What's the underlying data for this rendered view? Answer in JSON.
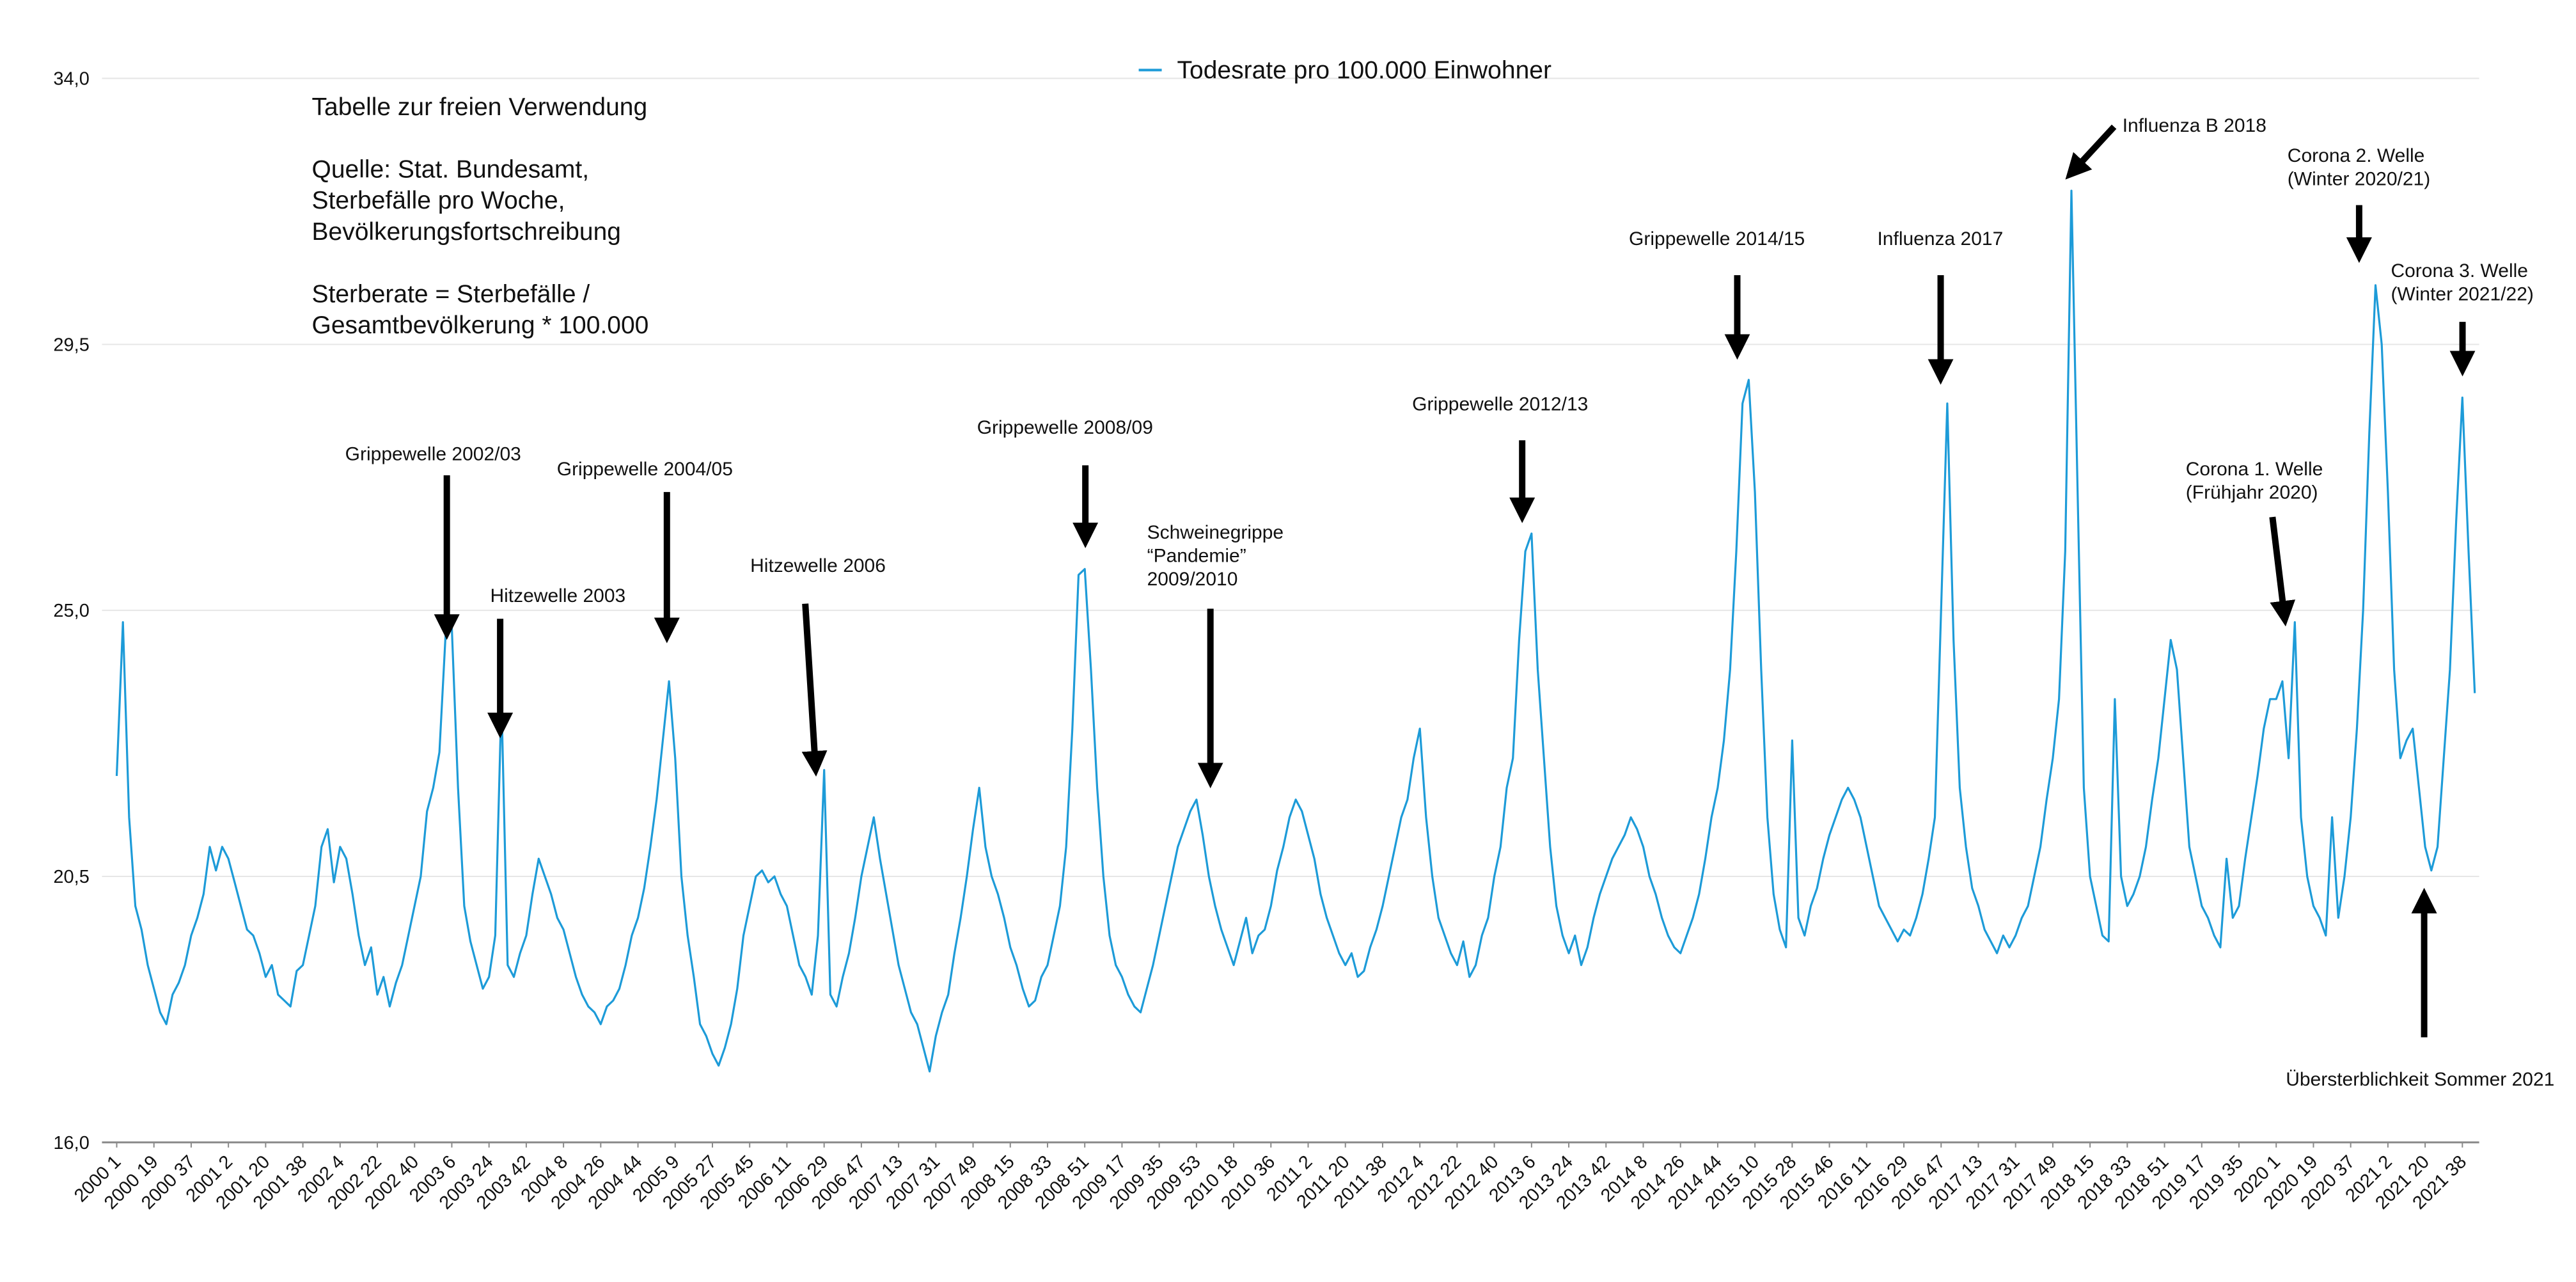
{
  "chart_data": {
    "type": "line",
    "legend": "top",
    "grid": true,
    "ylim": [
      16,
      34
    ],
    "yticks": [
      {
        "value": 16,
        "label": "16,0"
      },
      {
        "value": 20.5,
        "label": "20,5"
      },
      {
        "value": 25,
        "label": "25,0"
      },
      {
        "value": 29.5,
        "label": "29,5"
      },
      {
        "value": 34,
        "label": "34,0"
      }
    ],
    "notes": [
      [
        "Tabelle zur freien Verwendung"
      ],
      [
        "Quelle: Stat. Bundesamt,",
        "Sterbefälle pro Woche,",
        "Bevölkerungsfortschreibung"
      ],
      [
        "Sterberate = Sterbefälle /",
        "Gesamtbevölkerung * 100.000"
      ]
    ],
    "annotations": [
      {
        "lines": [
          "Grippewelle 2002/03"
        ]
      },
      {
        "lines": [
          "Hitzewelle 2003"
        ]
      },
      {
        "lines": [
          "Grippewelle 2004/05"
        ]
      },
      {
        "lines": [
          "Hitzewelle 2006"
        ]
      },
      {
        "lines": [
          "Grippewelle 2008/09"
        ]
      },
      {
        "lines": [
          "Schweinegrippe",
          "“Pandemie”",
          "2009/2010"
        ]
      },
      {
        "lines": [
          "Grippewelle 2012/13"
        ]
      },
      {
        "lines": [
          "Grippewelle 2014/15"
        ]
      },
      {
        "lines": [
          "Influenza 2017"
        ]
      },
      {
        "lines": [
          "Influenza B 2018"
        ]
      },
      {
        "lines": [
          "Corona 2. Welle",
          "(Winter 2020/21)"
        ]
      },
      {
        "lines": [
          "Corona 3. Welle",
          "(Winter 2021/22)"
        ]
      },
      {
        "lines": [
          "Corona 1. Welle",
          "(Frühjahr 2020)"
        ]
      },
      {
        "lines": [
          "Übersterblichkeit Sommer 2021"
        ]
      }
    ],
    "categories": [
      "2000 1",
      null,
      null,
      null,
      null,
      null,
      "2000 19",
      null,
      null,
      null,
      null,
      null,
      "2000 37",
      null,
      null,
      null,
      null,
      null,
      "2001 2",
      null,
      null,
      null,
      null,
      null,
      "2001 20",
      null,
      null,
      null,
      null,
      null,
      "2001 38",
      null,
      null,
      null,
      null,
      null,
      "2002 4",
      null,
      null,
      null,
      null,
      null,
      "2002 22",
      null,
      null,
      null,
      null,
      null,
      "2002 40",
      null,
      null,
      null,
      null,
      null,
      "2003 6",
      null,
      null,
      null,
      null,
      null,
      "2003 24",
      null,
      null,
      null,
      null,
      null,
      "2003 42",
      null,
      null,
      null,
      null,
      null,
      "2004 8",
      null,
      null,
      null,
      null,
      null,
      "2004 26",
      null,
      null,
      null,
      null,
      null,
      "2004 44",
      null,
      null,
      null,
      null,
      null,
      "2005 9",
      null,
      null,
      null,
      null,
      null,
      "2005 27",
      null,
      null,
      null,
      null,
      null,
      "2005 45",
      null,
      null,
      null,
      null,
      null,
      "2006 11",
      null,
      null,
      null,
      null,
      null,
      "2006 29",
      null,
      null,
      null,
      null,
      null,
      "2006 47",
      null,
      null,
      null,
      null,
      null,
      "2007 13",
      null,
      null,
      null,
      null,
      null,
      "2007 31",
      null,
      null,
      null,
      null,
      null,
      "2007 49",
      null,
      null,
      null,
      null,
      null,
      "2008 15",
      null,
      null,
      null,
      null,
      null,
      "2008 33",
      null,
      null,
      null,
      null,
      null,
      "2008 51",
      null,
      null,
      null,
      null,
      null,
      "2009 17",
      null,
      null,
      null,
      null,
      null,
      "2009 35",
      null,
      null,
      null,
      null,
      null,
      "2009 53",
      null,
      null,
      null,
      null,
      null,
      "2010 18",
      null,
      null,
      null,
      null,
      null,
      "2010 36",
      null,
      null,
      null,
      null,
      null,
      "2011 2",
      null,
      null,
      null,
      null,
      null,
      "2011 20",
      null,
      null,
      null,
      null,
      null,
      "2011 38",
      null,
      null,
      null,
      null,
      null,
      "2012 4",
      null,
      null,
      null,
      null,
      null,
      "2012 22",
      null,
      null,
      null,
      null,
      null,
      "2012 40",
      null,
      null,
      null,
      null,
      null,
      "2013 6",
      null,
      null,
      null,
      null,
      null,
      "2013 24",
      null,
      null,
      null,
      null,
      null,
      "2013 42",
      null,
      null,
      null,
      null,
      null,
      "2014 8",
      null,
      null,
      null,
      null,
      null,
      "2014 26",
      null,
      null,
      null,
      null,
      null,
      "2014 44",
      null,
      null,
      null,
      null,
      null,
      "2015 10",
      null,
      null,
      null,
      null,
      null,
      "2015 28",
      null,
      null,
      null,
      null,
      null,
      "2015 46",
      null,
      null,
      null,
      null,
      null,
      "2016 11",
      null,
      null,
      null,
      null,
      null,
      "2016 29",
      null,
      null,
      null,
      null,
      null,
      "2016 47",
      null,
      null,
      null,
      null,
      null,
      "2017 13",
      null,
      null,
      null,
      null,
      null,
      "2017 31",
      null,
      null,
      null,
      null,
      null,
      "2017 49",
      null,
      null,
      null,
      null,
      null,
      "2018 15",
      null,
      null,
      null,
      null,
      null,
      "2018 33",
      null,
      null,
      null,
      null,
      null,
      "2018 51",
      null,
      null,
      null,
      null,
      null,
      "2019 17",
      null,
      null,
      null,
      null,
      null,
      "2019 35",
      null,
      null,
      null,
      null,
      null,
      "2020 1",
      null,
      null,
      null,
      null,
      null,
      "2020 19",
      null,
      null,
      null,
      null,
      null,
      "2020 37",
      null,
      null,
      null,
      null,
      null,
      "2021 2",
      null,
      null,
      null,
      null,
      null,
      "2021 20",
      null,
      null,
      null,
      null,
      null,
      "2021 38",
      null,
      null
    ],
    "series": [
      {
        "name": "Todesrate pro 100.000 Einwohner",
        "color": "#1d9bd8",
        "values": [
          22.2,
          24.8,
          21.5,
          20.0,
          19.6,
          19.0,
          18.6,
          18.2,
          18.0,
          18.5,
          18.7,
          19.0,
          19.5,
          19.8,
          20.2,
          21.0,
          20.6,
          21.0,
          20.8,
          20.4,
          20.0,
          19.6,
          19.5,
          19.2,
          18.8,
          19.0,
          18.5,
          18.4,
          18.3,
          18.9,
          19.0,
          19.5,
          20.0,
          21.0,
          21.3,
          20.4,
          21.0,
          20.8,
          20.2,
          19.5,
          19.0,
          19.3,
          18.5,
          18.8,
          18.3,
          18.7,
          19.0,
          19.5,
          20.0,
          20.5,
          21.6,
          22.0,
          22.6,
          24.6,
          24.7,
          22.0,
          20.0,
          19.4,
          19.0,
          18.6,
          18.8,
          19.5,
          23.5,
          19.0,
          18.8,
          19.2,
          19.5,
          20.2,
          20.8,
          20.5,
          20.2,
          19.8,
          19.6,
          19.2,
          18.8,
          18.5,
          18.3,
          18.2,
          18.0,
          18.3,
          18.4,
          18.6,
          19.0,
          19.5,
          19.8,
          20.3,
          21.0,
          21.8,
          22.8,
          23.8,
          22.5,
          20.5,
          19.5,
          18.8,
          18.0,
          17.8,
          17.5,
          17.3,
          17.6,
          18.0,
          18.6,
          19.5,
          20.0,
          20.5,
          20.6,
          20.4,
          20.5,
          20.2,
          20.0,
          19.5,
          19.0,
          18.8,
          18.5,
          19.5,
          22.3,
          18.5,
          18.3,
          18.8,
          19.2,
          19.8,
          20.5,
          21.0,
          21.5,
          20.8,
          20.2,
          19.6,
          19.0,
          18.6,
          18.2,
          18.0,
          17.6,
          17.2,
          17.8,
          18.2,
          18.5,
          19.2,
          19.8,
          20.5,
          21.3,
          22.0,
          21.0,
          20.5,
          20.2,
          19.8,
          19.3,
          19.0,
          18.6,
          18.3,
          18.4,
          18.8,
          19.0,
          19.5,
          20.0,
          21.0,
          23.0,
          25.6,
          25.7,
          24.0,
          22.0,
          20.5,
          19.5,
          19.0,
          18.8,
          18.5,
          18.3,
          18.2,
          18.6,
          19.0,
          19.5,
          20.0,
          20.5,
          21.0,
          21.3,
          21.6,
          21.8,
          21.2,
          20.5,
          20.0,
          19.6,
          19.3,
          19.0,
          19.4,
          19.8,
          19.2,
          19.5,
          19.6,
          20.0,
          20.6,
          21.0,
          21.5,
          21.8,
          21.6,
          21.2,
          20.8,
          20.2,
          19.8,
          19.5,
          19.2,
          19.0,
          19.2,
          18.8,
          18.9,
          19.3,
          19.6,
          20.0,
          20.5,
          21.0,
          21.5,
          21.8,
          22.5,
          23.0,
          21.5,
          20.5,
          19.8,
          19.5,
          19.2,
          19.0,
          19.4,
          18.8,
          19.0,
          19.5,
          19.8,
          20.5,
          21.0,
          22.0,
          22.5,
          24.5,
          26.0,
          26.3,
          24.0,
          22.5,
          21.0,
          20.0,
          19.5,
          19.2,
          19.5,
          19.0,
          19.3,
          19.8,
          20.2,
          20.5,
          20.8,
          21.0,
          21.2,
          21.5,
          21.3,
          21.0,
          20.5,
          20.2,
          19.8,
          19.5,
          19.3,
          19.2,
          19.5,
          19.8,
          20.2,
          20.8,
          21.5,
          22.0,
          22.8,
          24.0,
          26.0,
          28.5,
          28.9,
          27.0,
          24.0,
          21.5,
          20.2,
          19.6,
          19.3,
          22.8,
          19.8,
          19.5,
          20.0,
          20.3,
          20.8,
          21.2,
          21.5,
          21.8,
          22.0,
          21.8,
          21.5,
          21.0,
          20.5,
          20.0,
          19.8,
          19.6,
          19.4,
          19.6,
          19.5,
          19.8,
          20.2,
          20.8,
          21.5,
          25.0,
          28.5,
          24.5,
          22.0,
          21.0,
          20.3,
          20.0,
          19.6,
          19.4,
          19.2,
          19.5,
          19.3,
          19.5,
          19.8,
          20.0,
          20.5,
          21.0,
          21.8,
          22.5,
          23.5,
          26.0,
          32.1,
          27.0,
          22.0,
          20.5,
          20.0,
          19.5,
          19.4,
          23.5,
          20.5,
          20.0,
          20.2,
          20.5,
          21.0,
          21.8,
          22.5,
          23.5,
          24.5,
          24.0,
          22.5,
          21.0,
          20.5,
          20.0,
          19.8,
          19.5,
          19.3,
          20.8,
          19.8,
          20.0,
          20.8,
          21.5,
          22.2,
          23.0,
          23.5,
          23.5,
          23.8,
          22.5,
          24.8,
          21.5,
          20.5,
          20.0,
          19.8,
          19.5,
          21.5,
          19.8,
          20.5,
          21.5,
          23.0,
          25.0,
          28.0,
          30.5,
          29.5,
          27.0,
          24.0,
          22.5,
          22.8,
          23.0,
          22.0,
          21.0,
          20.6,
          21.0,
          22.5,
          24.0,
          26.5,
          28.6,
          26.0,
          23.6
        ]
      }
    ]
  }
}
